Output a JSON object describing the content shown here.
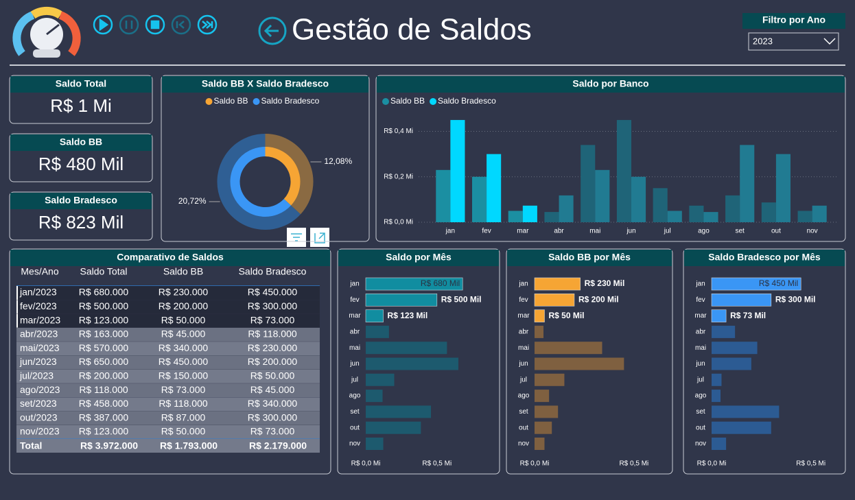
{
  "header": {
    "title": "Gestão de Saldos",
    "filter_label": "Filtro por Ano",
    "filter_value": "2023"
  },
  "kpis": [
    {
      "title": "Saldo Total",
      "value": "R$ 1 Mi"
    },
    {
      "title": "Saldo BB",
      "value": "R$ 480 Mil"
    },
    {
      "title": "Saldo Bradesco",
      "value": "R$ 823 Mil"
    }
  ],
  "table": {
    "title": "Comparativo de Saldos",
    "columns": [
      "Mes/Ano",
      "Saldo Total",
      "Saldo BB",
      "Saldo Bradesco"
    ],
    "rows": [
      [
        "jan/2023",
        "R$ 680.000",
        "R$ 230.000",
        "R$ 450.000"
      ],
      [
        "fev/2023",
        "R$ 500.000",
        "R$ 200.000",
        "R$ 300.000"
      ],
      [
        "mar/2023",
        "R$ 123.000",
        "R$ 50.000",
        "R$ 73.000"
      ],
      [
        "abr/2023",
        "R$ 163.000",
        "R$ 45.000",
        "R$ 118.000"
      ],
      [
        "mai/2023",
        "R$ 570.000",
        "R$ 340.000",
        "R$ 230.000"
      ],
      [
        "jun/2023",
        "R$ 650.000",
        "R$ 450.000",
        "R$ 200.000"
      ],
      [
        "jul/2023",
        "R$ 200.000",
        "R$ 150.000",
        "R$ 50.000"
      ],
      [
        "ago/2023",
        "R$ 118.000",
        "R$ 73.000",
        "R$ 45.000"
      ],
      [
        "set/2023",
        "R$ 458.000",
        "R$ 118.000",
        "R$ 340.000"
      ],
      [
        "out/2023",
        "R$ 387.000",
        "R$ 87.000",
        "R$ 300.000"
      ],
      [
        "nov/2023",
        "R$ 123.000",
        "R$ 50.000",
        "R$ 73.000"
      ]
    ],
    "total": [
      "Total",
      "R$ 3.972.000",
      "R$ 1.793.000",
      "R$ 2.179.000"
    ]
  },
  "chart_data": [
    {
      "type": "donut",
      "title": "Saldo BB X Saldo Bradesco",
      "categories": [
        "Saldo BB",
        "Saldo Bradesco"
      ],
      "values": [
        12.08,
        20.72
      ],
      "value_labels": [
        "12,08%",
        "20,72%"
      ],
      "colors": [
        "#f6a534",
        "#3a96f5"
      ],
      "dimmed_colors": [
        "#8a6a42",
        "#2f5f94"
      ]
    },
    {
      "type": "bar",
      "title": "Saldo por Banco",
      "categories": [
        "jan",
        "fev",
        "mar",
        "abr",
        "mai",
        "jun",
        "jul",
        "ago",
        "set",
        "out",
        "nov"
      ],
      "series": [
        {
          "name": "Saldo BB",
          "color": "#1b8fa2",
          "dimmed_color": "#1f6478",
          "values": [
            0.23,
            0.2,
            0.05,
            0.045,
            0.34,
            0.45,
            0.15,
            0.073,
            0.118,
            0.087,
            0.05
          ]
        },
        {
          "name": "Saldo Bradesco",
          "color": "#00d8ff",
          "dimmed_color": "#217b92",
          "values": [
            0.45,
            0.3,
            0.073,
            0.118,
            0.23,
            0.2,
            0.05,
            0.045,
            0.34,
            0.3,
            0.073
          ]
        }
      ],
      "ylim": [
        0,
        0.48
      ],
      "yticks": [
        {
          "value": 0,
          "label": "R$ 0,0 Mi"
        },
        {
          "value": 0.2,
          "label": "R$ 0,2 Mi"
        },
        {
          "value": 0.4,
          "label": "R$ 0,4 Mi"
        }
      ],
      "grid": true,
      "highlight": [
        true,
        true,
        true,
        false,
        false,
        false,
        false,
        false,
        false,
        false,
        false
      ]
    },
    {
      "type": "hbar",
      "title": "Saldo por Mês",
      "categories": [
        "jan",
        "fev",
        "mar",
        "abr",
        "mai",
        "jun",
        "jul",
        "ago",
        "set",
        "out",
        "nov"
      ],
      "values": [
        0.68,
        0.5,
        0.123,
        0.163,
        0.57,
        0.65,
        0.2,
        0.118,
        0.458,
        0.387,
        0.123
      ],
      "value_labels": [
        "R$ 680 Mil",
        "R$ 500 Mil",
        "R$ 123 Mil",
        null,
        null,
        null,
        null,
        null,
        null,
        null,
        null
      ],
      "color": "#118da0",
      "dimmed_color": "#1d5a6e",
      "xlim": [
        0,
        0.92
      ],
      "xticks": [
        {
          "value": 0,
          "label": "R$ 0,0 Mi"
        },
        {
          "value": 0.5,
          "label": "R$ 0,5 Mi"
        }
      ],
      "highlight": [
        true,
        true,
        true,
        false,
        false,
        false,
        false,
        false,
        false,
        false,
        false
      ]
    },
    {
      "type": "hbar",
      "title": "Saldo BB por Mês",
      "categories": [
        "jan",
        "fev",
        "mar",
        "abr",
        "mai",
        "jun",
        "jul",
        "ago",
        "set",
        "out",
        "nov"
      ],
      "values": [
        0.23,
        0.2,
        0.05,
        0.045,
        0.34,
        0.45,
        0.15,
        0.073,
        0.118,
        0.087,
        0.05
      ],
      "value_labels": [
        "R$ 230 Mil",
        "R$ 200 Mil",
        "R$ 50 Mil",
        null,
        null,
        null,
        null,
        null,
        null,
        null,
        null
      ],
      "color": "#f6a534",
      "dimmed_color": "#7f6040",
      "xlim": [
        0,
        0.68
      ],
      "xticks": [
        {
          "value": 0,
          "label": "R$ 0,0 Mi"
        },
        {
          "value": 0.5,
          "label": "R$ 0,5 Mi"
        }
      ],
      "highlight": [
        true,
        true,
        true,
        false,
        false,
        false,
        false,
        false,
        false,
        false,
        false
      ]
    },
    {
      "type": "hbar",
      "title": "Saldo Bradesco por Mês",
      "categories": [
        "jan",
        "fev",
        "mar",
        "abr",
        "mai",
        "jun",
        "jul",
        "ago",
        "set",
        "out",
        "nov"
      ],
      "values": [
        0.45,
        0.3,
        0.073,
        0.118,
        0.23,
        0.2,
        0.05,
        0.045,
        0.34,
        0.3,
        0.073
      ],
      "value_labels": [
        "R$ 450 Mil",
        "R$ 300 Mil",
        "R$ 73 Mil",
        null,
        null,
        null,
        null,
        null,
        null,
        null,
        null
      ],
      "color": "#3a96f5",
      "dimmed_color": "#2c5b93",
      "xlim": [
        0,
        0.66
      ],
      "xticks": [
        {
          "value": 0,
          "label": "R$ 0,0 Mi"
        },
        {
          "value": 0.5,
          "label": "R$ 0,5 Mi"
        }
      ],
      "highlight": [
        true,
        true,
        true,
        false,
        false,
        false,
        false,
        false,
        false,
        false,
        false
      ]
    }
  ]
}
